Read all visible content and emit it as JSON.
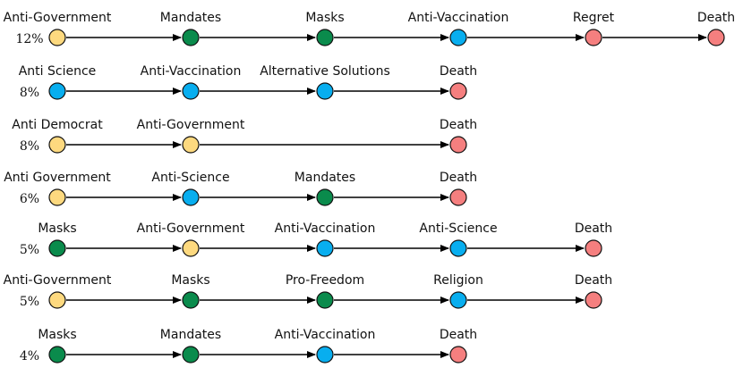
{
  "colors": {
    "anti-government": "#fdd97f",
    "anti-democrat": "#fdd97f",
    "anti-science": "#08aeef",
    "anti-vaccination": "#08aeef",
    "alternative-solutions": "#08aeef",
    "mandates": "#0a8b4c",
    "masks": "#0a8b4c",
    "pro-freedom": "#0a8b4c",
    "religion": "#08aeef",
    "regret": "#f57f7f",
    "death": "#f57f7f"
  },
  "paths": [
    {
      "percent": "12%",
      "nodes": [
        {
          "label": "Anti-Government",
          "category": "anti-government"
        },
        {
          "label": "Mandates",
          "category": "mandates"
        },
        {
          "label": "Masks",
          "category": "masks"
        },
        {
          "label": "Anti-Vaccination",
          "category": "anti-vaccination"
        },
        {
          "label": "Regret",
          "category": "regret"
        },
        {
          "label": "Death",
          "category": "death"
        }
      ]
    },
    {
      "percent": "8%",
      "nodes": [
        {
          "label": "Anti Science",
          "category": "anti-science"
        },
        {
          "label": "Anti-Vaccination",
          "category": "anti-vaccination"
        },
        {
          "label": "Alternative Solutions",
          "category": "alternative-solutions"
        },
        {
          "label": "Death",
          "category": "death"
        }
      ]
    },
    {
      "percent": "8%",
      "nodes": [
        {
          "label": "Anti Democrat",
          "category": "anti-democrat"
        },
        {
          "label": "Anti-Government",
          "category": "anti-government"
        },
        {
          "label": "Death",
          "category": "death"
        }
      ]
    },
    {
      "percent": "6%",
      "nodes": [
        {
          "label": "Anti Government",
          "category": "anti-government"
        },
        {
          "label": "Anti-Science",
          "category": "anti-science"
        },
        {
          "label": "Mandates",
          "category": "mandates"
        },
        {
          "label": "Death",
          "category": "death"
        }
      ]
    },
    {
      "percent": "5%",
      "nodes": [
        {
          "label": "Masks",
          "category": "masks"
        },
        {
          "label": "Anti-Government",
          "category": "anti-government"
        },
        {
          "label": "Anti-Vaccination",
          "category": "anti-vaccination"
        },
        {
          "label": "Anti-Science",
          "category": "anti-science"
        },
        {
          "label": "Death",
          "category": "death"
        }
      ]
    },
    {
      "percent": "5%",
      "nodes": [
        {
          "label": "Anti-Government",
          "category": "anti-government"
        },
        {
          "label": "Masks",
          "category": "masks"
        },
        {
          "label": "Pro-Freedom",
          "category": "pro-freedom"
        },
        {
          "label": "Religion",
          "category": "religion"
        },
        {
          "label": "Death",
          "category": "death"
        }
      ]
    },
    {
      "percent": "4%",
      "nodes": [
        {
          "label": "Masks",
          "category": "masks"
        },
        {
          "label": "Mandates",
          "category": "mandates"
        },
        {
          "label": "Anti-Vaccination",
          "category": "anti-vaccination"
        },
        {
          "label": "Death",
          "category": "death"
        }
      ]
    }
  ]
}
